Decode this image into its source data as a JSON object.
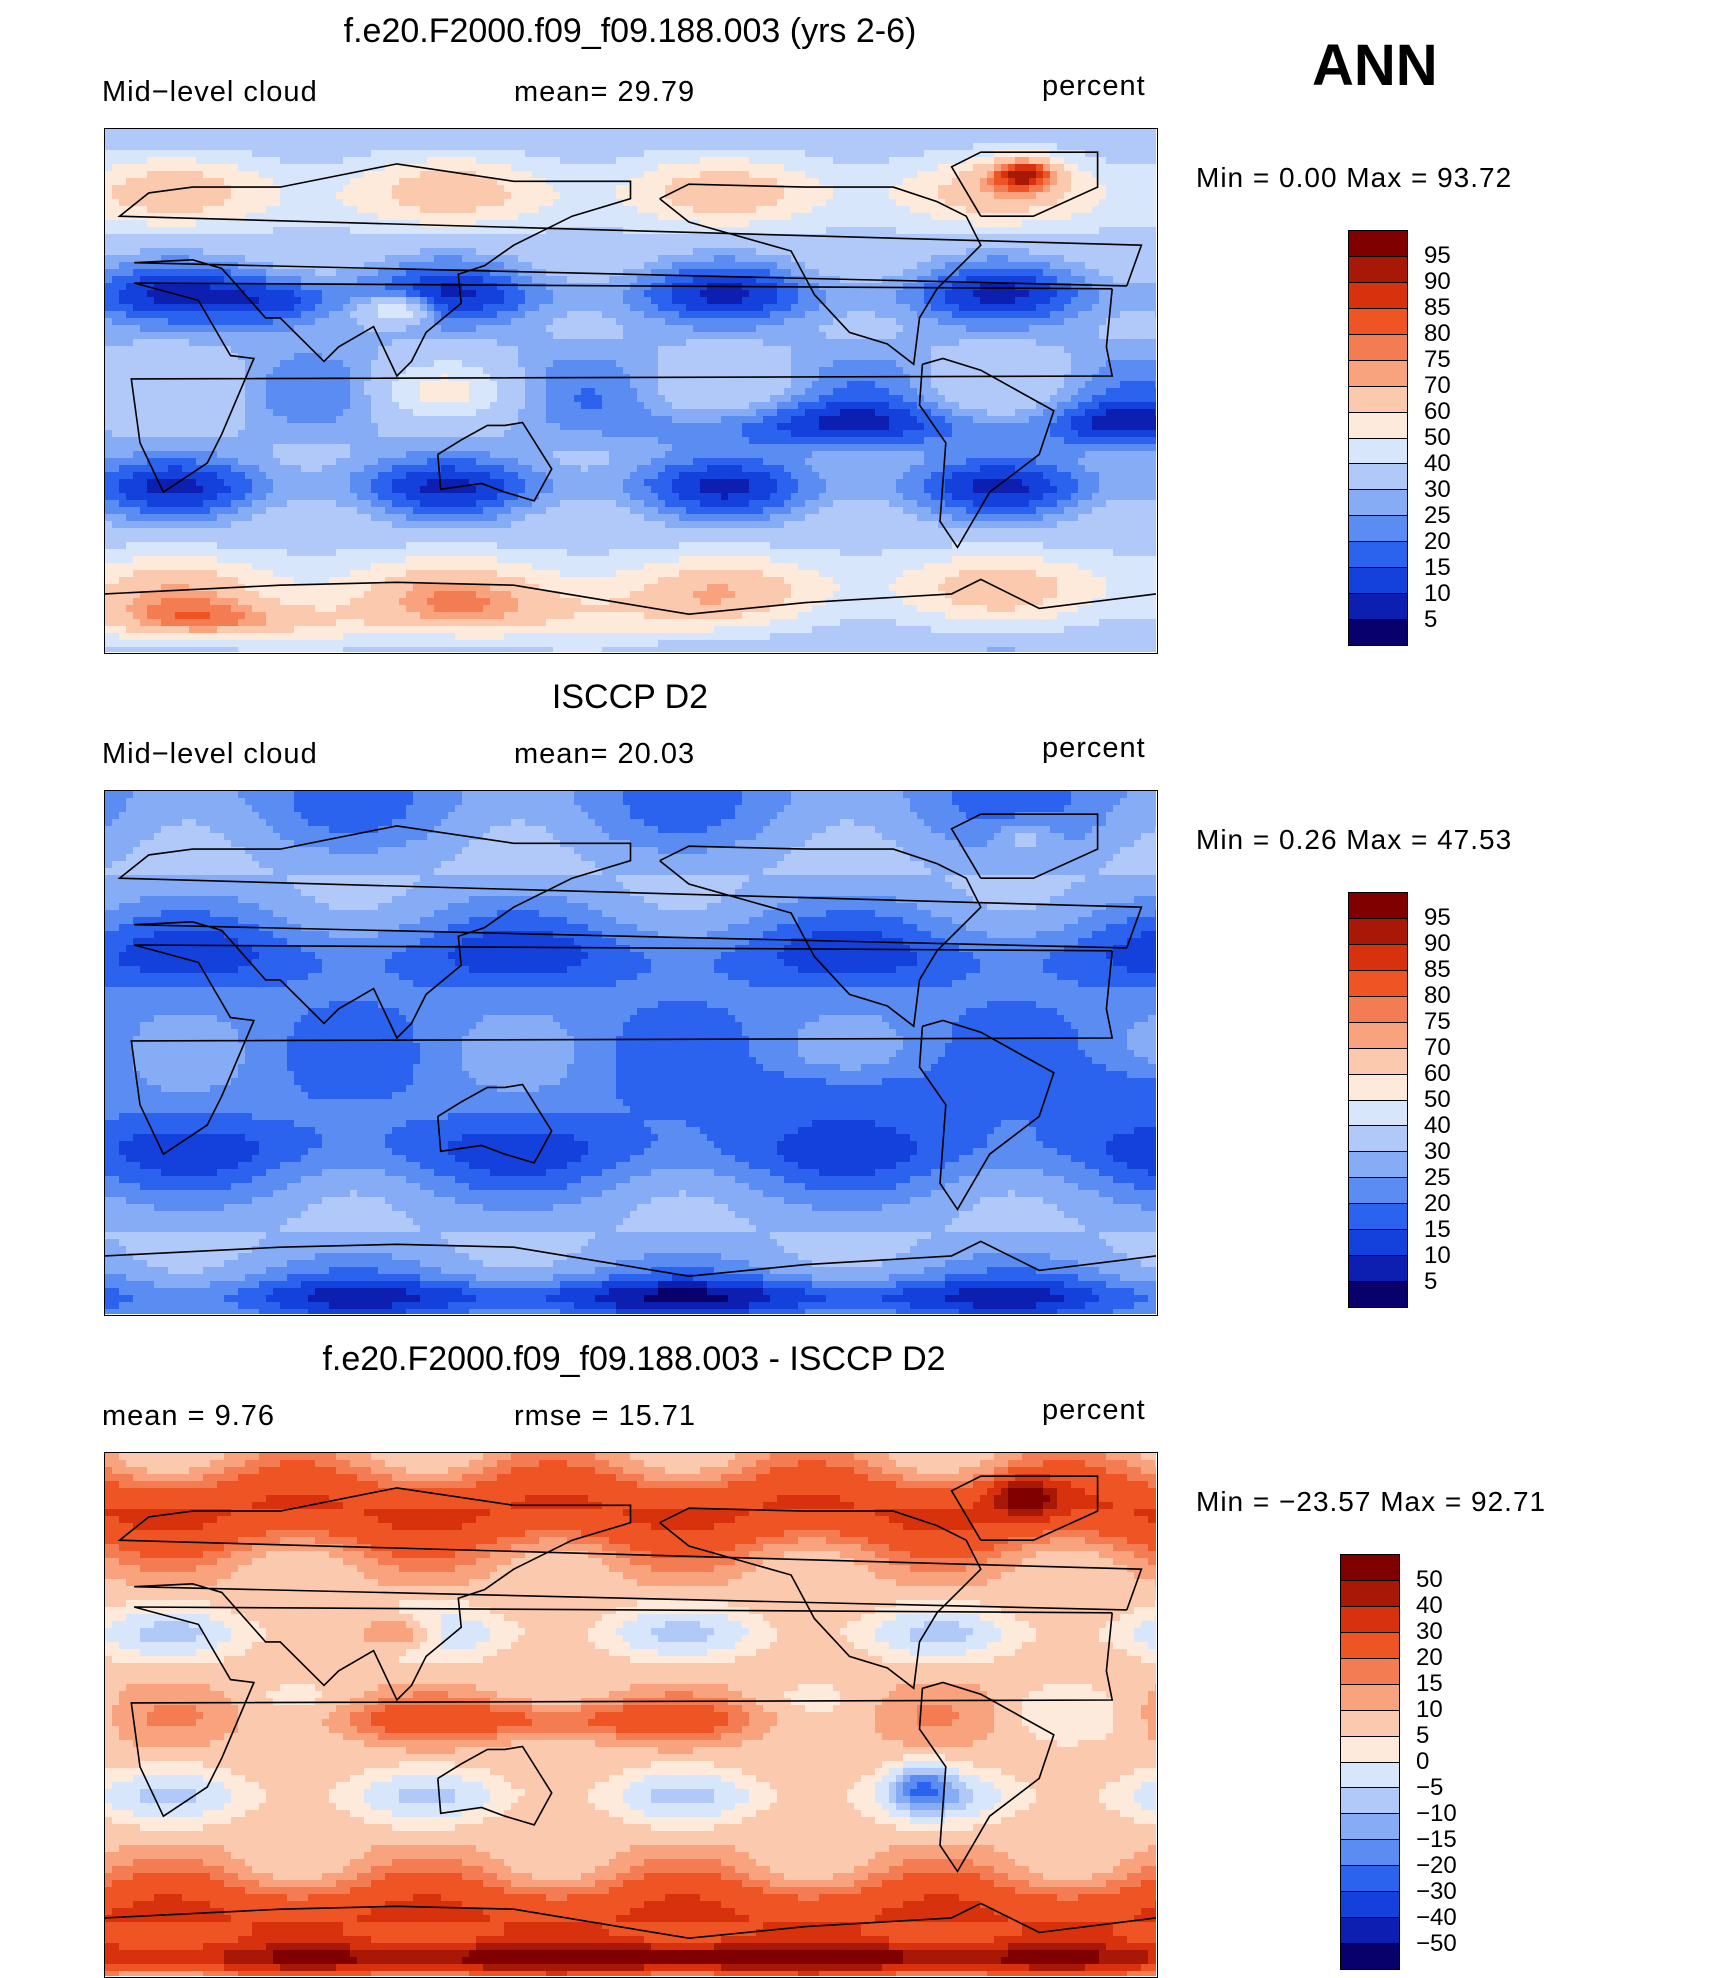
{
  "season": "ANN",
  "palette": {
    "levels": [
      "#08006b",
      "#0d1fb1",
      "#1440db",
      "#2b62ee",
      "#5a8cf2",
      "#86acf5",
      "#b0c9f8",
      "#d7e6fb",
      "#fdeadb",
      "#fbcaae",
      "#f8a37e",
      "#f47c52",
      "#ee5424",
      "#d7320d",
      "#a81806",
      "#800000"
    ],
    "diff_levels": [
      "#08006b",
      "#0d1fb1",
      "#1440db",
      "#2b62ee",
      "#5a8cf2",
      "#86acf5",
      "#b0c9f8",
      "#d7e6fb",
      "#fdeadb",
      "#fbcaae",
      "#f8a37e",
      "#f47c52",
      "#ee5424",
      "#d7320d",
      "#a81806",
      "#800000"
    ],
    "coastline": "#000000"
  },
  "panels": [
    {
      "title": "f.e20.F2000.f09_f09.188.003 (yrs 2-6)",
      "left_label": "Mid−level cloud",
      "center_label": "mean=   29.79",
      "units": "percent",
      "minmax": "Min  =     0.00  Max  =    93.72",
      "colorbar_labels": [
        "95",
        "90",
        "85",
        "80",
        "75",
        "70",
        "60",
        "50",
        "40",
        "30",
        "25",
        "20",
        "15",
        "10",
        "5"
      ],
      "field": "model"
    },
    {
      "title": "ISCCP D2",
      "left_label": "Mid−level cloud",
      "center_label": "mean=   20.03",
      "units": "percent",
      "minmax": "Min  =     0.26  Max  =    47.53",
      "colorbar_labels": [
        "95",
        "90",
        "85",
        "80",
        "75",
        "70",
        "60",
        "50",
        "40",
        "30",
        "25",
        "20",
        "15",
        "10",
        "5"
      ],
      "field": "obs"
    },
    {
      "title": "f.e20.F2000.f09_f09.188.003 - ISCCP D2",
      "left_label": "mean  =      9.76",
      "center_label": "rmse  =     15.71",
      "units": "percent",
      "minmax": "Min  = −23.57  Max  =    92.71",
      "colorbar_labels": [
        "50",
        "40",
        "30",
        "20",
        "15",
        "10",
        "5",
        "0",
        "−5",
        "−10",
        "−15",
        "−20",
        "−30",
        "−40",
        "−50"
      ],
      "field": "diff"
    }
  ]
}
